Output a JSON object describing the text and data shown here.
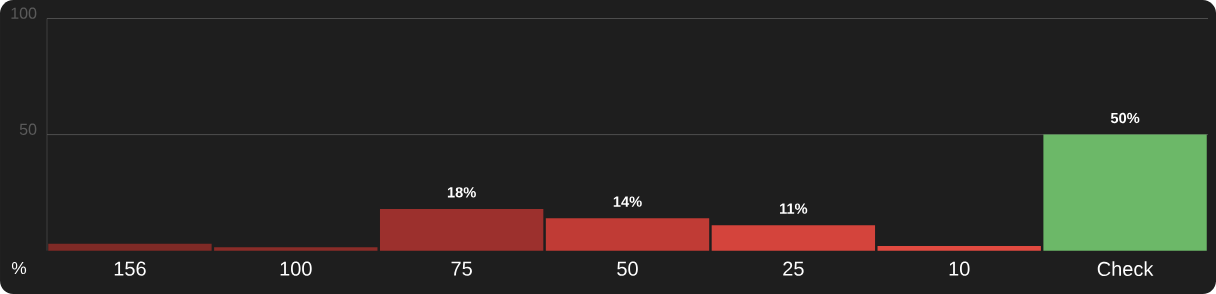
{
  "chart_data": {
    "type": "bar",
    "ylabel": "%",
    "categories": [
      "156",
      "100",
      "75",
      "50",
      "25",
      "10",
      "Check"
    ],
    "values": [
      3,
      1.5,
      18,
      14,
      11,
      2,
      50
    ],
    "colors": [
      "#7f2a26",
      "#8a2c28",
      "#9c302d",
      "#c03b35",
      "#d4443c",
      "#e24a40",
      "#6cb868"
    ],
    "value_labels": [
      null,
      null,
      "18%",
      "14%",
      "11%",
      null,
      "50%"
    ],
    "ylim": [
      0,
      100
    ],
    "yticks": [
      50,
      100
    ],
    "grid": "y"
  }
}
